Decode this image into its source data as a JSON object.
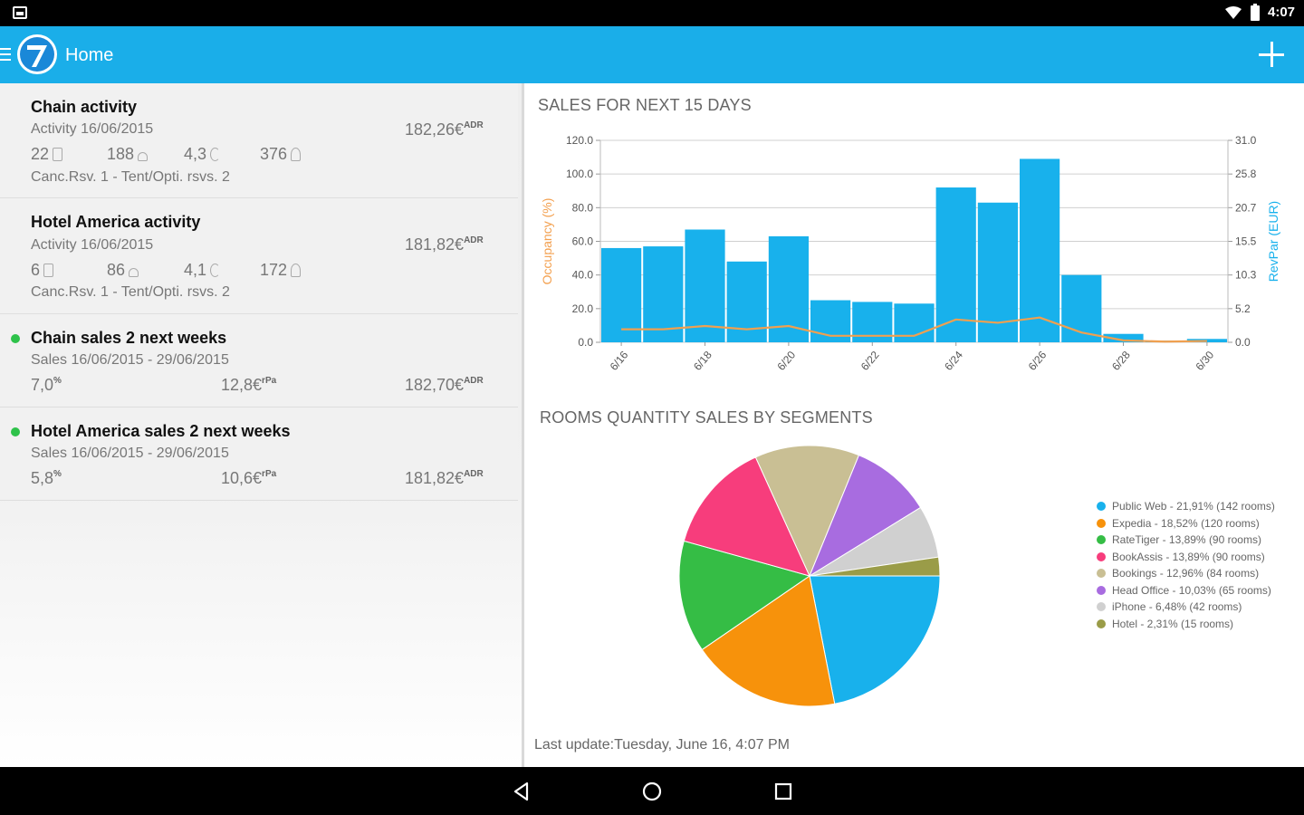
{
  "status": {
    "time": "4:07"
  },
  "app": {
    "title": "Home",
    "accent": "#1aaee9"
  },
  "cards": [
    {
      "title": "Chain activity",
      "subtitle": "Activity 16/06/2015",
      "value": "182,26€",
      "value_sup": "ADR",
      "stats": [
        "22",
        "188",
        "4,3",
        "376"
      ],
      "footer": "Canc.Rsv. 1 - Tent/Opti. rsvs. 2"
    },
    {
      "title": "Hotel America activity",
      "subtitle": "Activity 16/06/2015",
      "value": "181,82€",
      "value_sup": "ADR",
      "stats": [
        "6",
        "86",
        "4,1",
        "172"
      ],
      "footer": "Canc.Rsv. 1 - Tent/Opti. rsvs. 2"
    },
    {
      "title": "Chain sales 2 next weeks",
      "subtitle": "Sales 16/06/2015 - 29/06/2015",
      "occ": "7,0",
      "occ_sup": "%",
      "revpar": "12,8€",
      "revpar_sup": "rPa",
      "value": "182,70€",
      "value_sup": "ADR"
    },
    {
      "title": "Hotel America sales 2 next weeks",
      "subtitle": "Sales 16/06/2015 - 29/06/2015",
      "occ": "5,8",
      "occ_sup": "%",
      "revpar": "10,6€",
      "revpar_sup": "rPa",
      "value": "181,82€",
      "value_sup": "ADR"
    }
  ],
  "sales_chart": {
    "title": "SALES FOR NEXT 15 DAYS",
    "ylabel_left": "Occupancy (%)",
    "ylabel_right": "RevPar (EUR)",
    "left_ticks": [
      "120.0",
      "100.0",
      "80.0",
      "60.0",
      "40.0",
      "20.0",
      "0.0"
    ],
    "right_ticks": [
      "31.0",
      "25.8",
      "20.7",
      "15.5",
      "10.3",
      "5.2",
      "0.0"
    ],
    "x_ticks": [
      "6/16",
      "6/18",
      "6/20",
      "6/22",
      "6/24",
      "6/26",
      "6/28",
      "6/30"
    ]
  },
  "pie_chart": {
    "title": "ROOMS QUANTITY SALES BY SEGMENTS",
    "legend": [
      "Public Web - 21,91% (142 rooms)",
      "Expedia - 18,52% (120 rooms)",
      "RateTiger - 13,89% (90 rooms)",
      "BookAssis - 13,89% (90 rooms)",
      "Bookings - 12,96% (84 rooms)",
      "Head Office - 10,03% (65 rooms)",
      "iPhone - 6,48% (42 rooms)",
      "Hotel - 2,31% (15 rooms)"
    ]
  },
  "last_update": "Last update:Tuesday, June 16, 4:07 PM",
  "chart_data": [
    {
      "type": "bar",
      "title": "SALES FOR NEXT 15 DAYS",
      "ylabel": "Occupancy (%)",
      "y2label": "RevPar (EUR)",
      "ylim": [
        0,
        120
      ],
      "y2lim": [
        0,
        31
      ],
      "categories": [
        "6/16",
        "6/17",
        "6/18",
        "6/19",
        "6/20",
        "6/21",
        "6/22",
        "6/23",
        "6/24",
        "6/25",
        "6/26",
        "6/27",
        "6/28",
        "6/29",
        "6/30"
      ],
      "series": [
        {
          "values": [
            56,
            57,
            67,
            48,
            63,
            25,
            24,
            23,
            92,
            83,
            109,
            40,
            5,
            1,
            2
          ]
        },
        {
          "values": [
            2.0,
            2.0,
            2.5,
            2.0,
            2.5,
            1.0,
            1.0,
            1.0,
            3.5,
            3.0,
            3.8,
            1.5,
            0.3,
            0.1,
            0.2
          ]
        }
      ],
      "grid": true,
      "colors": [
        "#18b1ec",
        "#f0a050"
      ]
    },
    {
      "type": "pie",
      "title": "ROOMS QUANTITY SALES BY SEGMENTS",
      "categories": [
        "Public Web",
        "Expedia",
        "RateTiger",
        "BookAssis",
        "Bookings",
        "Head Office",
        "iPhone",
        "Hotel"
      ],
      "values": [
        142,
        120,
        90,
        90,
        84,
        65,
        42,
        15
      ],
      "colors": [
        "#18b1ec",
        "#f7920b",
        "#35bd45",
        "#f73d7c",
        "#c9bf94",
        "#a86ce0",
        "#d0d0d0",
        "#9a9c48"
      ]
    }
  ]
}
